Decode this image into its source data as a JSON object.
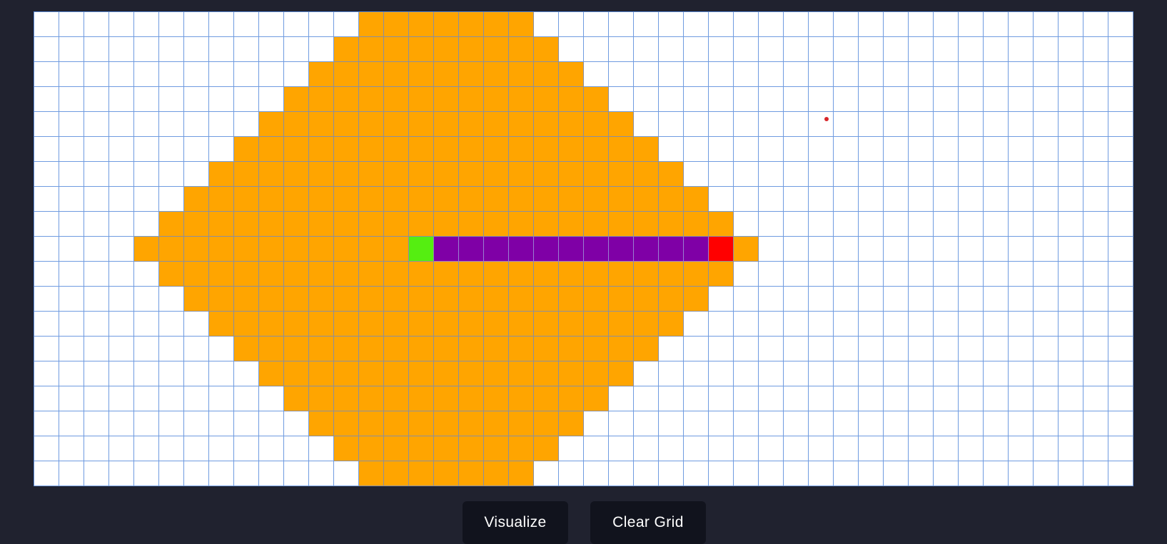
{
  "grid": {
    "rows": 19,
    "cols": 44,
    "start": {
      "row": 9,
      "col": 15
    },
    "end": {
      "row": 9,
      "col": 27
    },
    "path_row": 9,
    "path_cols": [
      16,
      26
    ],
    "visited_center": {
      "row": 9,
      "col": 16
    },
    "visited_radius": 12,
    "colors": {
      "empty": "#ffffff",
      "visited": "#ffa500",
      "path": "#7f00a6",
      "start": "#55ee11",
      "end": "#ff0000",
      "grid_line": "#6f9be0",
      "background": "#20222f"
    }
  },
  "controls": {
    "visualize_label": "Visualize",
    "clear_label": "Clear Grid"
  }
}
